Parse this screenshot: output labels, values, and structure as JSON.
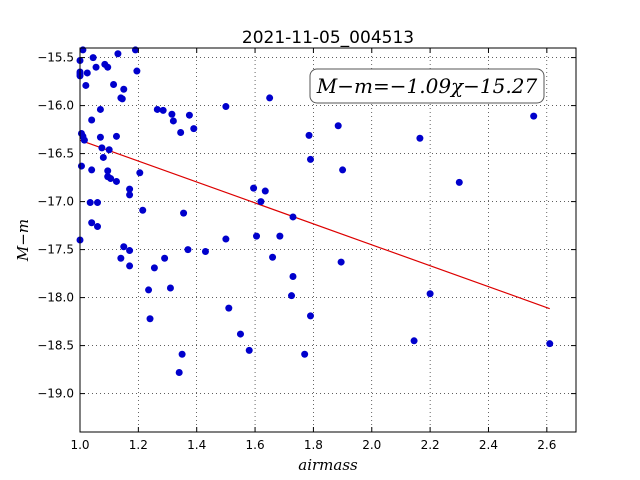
{
  "chart_data": {
    "type": "scatter",
    "title": "2021-11-05_004513",
    "xlabel": "airmass",
    "ylabel": "M−m",
    "xlim": [
      1.0,
      2.7
    ],
    "ylim": [
      -19.4,
      -15.4
    ],
    "y_inverted": true,
    "grid": true,
    "x_ticks": [
      1.0,
      1.2,
      1.4,
      1.6,
      1.8,
      2.0,
      2.2,
      2.4,
      2.6
    ],
    "x_tick_labels": [
      "1.0",
      "1.2",
      "1.4",
      "1.6",
      "1.8",
      "2.0",
      "2.2",
      "2.4",
      "2.6"
    ],
    "y_ticks": [
      -15.5,
      -16.0,
      -16.5,
      -17.0,
      -17.5,
      -18.0,
      -18.5,
      -19.0
    ],
    "y_tick_labels": [
      "−15.5",
      "−16.0",
      "−16.5",
      "−17.0",
      "−17.5",
      "−18.0",
      "−18.5",
      "−19.0"
    ],
    "annotation": "M−m=−1.09χ−15.27",
    "marker_color": "#0000cc",
    "fit_color": "#dd0000",
    "fit": {
      "slope": -1.09,
      "intercept": -15.27,
      "x_range": [
        1.0,
        2.61
      ]
    },
    "points": [
      [
        1.0,
        -15.53
      ],
      [
        1.0,
        -15.65
      ],
      [
        1.0,
        -15.67
      ],
      [
        1.0,
        -15.69
      ],
      [
        1.005,
        -16.29
      ],
      [
        1.005,
        -16.63
      ],
      [
        1.0,
        -17.4
      ],
      [
        1.01,
        -15.42
      ],
      [
        1.01,
        -16.32
      ],
      [
        1.015,
        -16.36
      ],
      [
        1.02,
        -15.79
      ],
      [
        1.025,
        -15.66
      ],
      [
        1.04,
        -16.15
      ],
      [
        1.04,
        -16.67
      ],
      [
        1.035,
        -17.01
      ],
      [
        1.04,
        -17.22
      ],
      [
        1.045,
        -15.5
      ],
      [
        1.055,
        -15.6
      ],
      [
        1.06,
        -17.01
      ],
      [
        1.06,
        -17.26
      ],
      [
        1.07,
        -16.04
      ],
      [
        1.07,
        -16.33
      ],
      [
        1.075,
        -16.44
      ],
      [
        1.08,
        -16.54
      ],
      [
        1.085,
        -15.57
      ],
      [
        1.095,
        -15.6
      ],
      [
        1.1,
        -16.46
      ],
      [
        1.095,
        -16.68
      ],
      [
        1.095,
        -16.74
      ],
      [
        1.105,
        -16.76
      ],
      [
        1.115,
        -15.78
      ],
      [
        1.13,
        -15.46
      ],
      [
        1.125,
        -16.32
      ],
      [
        1.125,
        -16.79
      ],
      [
        1.14,
        -15.92
      ],
      [
        1.145,
        -15.93
      ],
      [
        1.14,
        -17.59
      ],
      [
        1.15,
        -15.83
      ],
      [
        1.15,
        -17.47
      ],
      [
        1.17,
        -16.87
      ],
      [
        1.17,
        -16.93
      ],
      [
        1.17,
        -17.51
      ],
      [
        1.17,
        -17.67
      ],
      [
        1.19,
        -15.42
      ],
      [
        1.195,
        -15.64
      ],
      [
        1.205,
        -16.7
      ],
      [
        1.215,
        -17.09
      ],
      [
        1.235,
        -17.92
      ],
      [
        1.24,
        -18.22
      ],
      [
        1.255,
        -17.69
      ],
      [
        1.265,
        -16.04
      ],
      [
        1.285,
        -16.05
      ],
      [
        1.29,
        -17.59
      ],
      [
        1.31,
        -17.9
      ],
      [
        1.315,
        -16.09
      ],
      [
        1.32,
        -16.16
      ],
      [
        1.34,
        -18.78
      ],
      [
        1.345,
        -16.28
      ],
      [
        1.35,
        -18.59
      ],
      [
        1.355,
        -17.12
      ],
      [
        1.37,
        -17.5
      ],
      [
        1.375,
        -16.1
      ],
      [
        1.39,
        -16.24
      ],
      [
        1.43,
        -17.52
      ],
      [
        1.5,
        -16.01
      ],
      [
        1.5,
        -17.39
      ],
      [
        1.51,
        -18.11
      ],
      [
        1.55,
        -18.38
      ],
      [
        1.58,
        -18.55
      ],
      [
        1.595,
        -16.86
      ],
      [
        1.605,
        -17.36
      ],
      [
        1.62,
        -17.0
      ],
      [
        1.635,
        -16.89
      ],
      [
        1.65,
        -15.92
      ],
      [
        1.66,
        -17.58
      ],
      [
        1.685,
        -17.36
      ],
      [
        1.725,
        -17.98
      ],
      [
        1.73,
        -17.78
      ],
      [
        1.73,
        -17.16
      ],
      [
        1.77,
        -18.59
      ],
      [
        1.785,
        -16.31
      ],
      [
        1.79,
        -16.56
      ],
      [
        1.79,
        -18.19
      ],
      [
        1.885,
        -16.21
      ],
      [
        1.895,
        -17.63
      ],
      [
        1.9,
        -16.67
      ],
      [
        2.145,
        -18.45
      ],
      [
        2.165,
        -16.34
      ],
      [
        2.2,
        -17.96
      ],
      [
        2.3,
        -16.8
      ],
      [
        2.555,
        -16.11
      ],
      [
        2.61,
        -18.48
      ]
    ]
  }
}
